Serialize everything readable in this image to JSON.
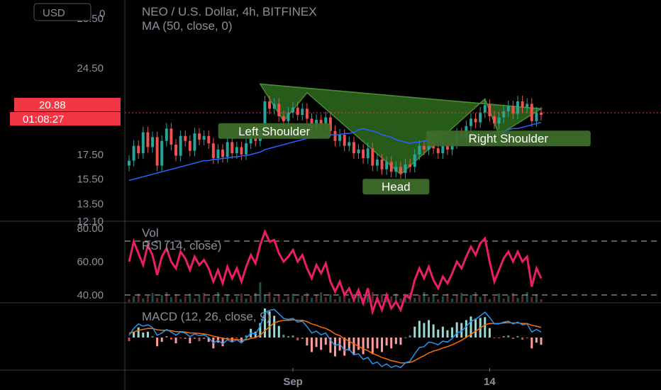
{
  "header": {
    "currency_label": "USD",
    "title": "NEO / U.S. Dollar, 4h, BITFINEX",
    "indicator": "MA (50, close, 0)",
    "top_axis_fragment": "0"
  },
  "price_badge": {
    "price": "20.88",
    "countdown": "01:08:27",
    "color": "#f23645"
  },
  "colors": {
    "background": "#000000",
    "up_candle": "#26a69a",
    "down_candle": "#ef5350",
    "ma_line": "#2962ff",
    "rsi_line": "#e91e63",
    "macd_line": "#2196f3",
    "signal_line": "#ff6d00",
    "pattern_fill": "#2e6b1f",
    "annotation_box": "#3d6b2a"
  },
  "chart_data": [
    {
      "type": "candlestick",
      "title": "NEO / U.S. Dollar, 4h, BITFINEX",
      "y_ticks": [
        "28.50",
        "24.50",
        "17.50",
        "15.50",
        "13.50",
        "12.10"
      ],
      "y_tick_values": [
        28.5,
        24.5,
        17.5,
        15.5,
        13.5,
        12.1
      ],
      "ylim": [
        12.1,
        30.0
      ],
      "x_ticks": [
        "Sep",
        "14"
      ],
      "x_tick_index": [
        35,
        77
      ],
      "current_price": 20.88,
      "annotations": [
        "Left Shoulder",
        "Head",
        "Right Shoulder"
      ],
      "pattern_points": [
        {
          "i": 28,
          "v": 23.2
        },
        {
          "i": 33,
          "v": 20.2
        },
        {
          "i": 38,
          "v": 22.5
        },
        {
          "i": 58,
          "v": 15.9
        },
        {
          "i": 76,
          "v": 22.0
        },
        {
          "i": 79,
          "v": 19.1
        },
        {
          "i": 88,
          "v": 21.2
        }
      ],
      "candles_close": [
        17.0,
        18.2,
        17.6,
        19.3,
        18.1,
        18.9,
        16.6,
        18.6,
        19.6,
        18.3,
        17.4,
        19.0,
        18.6,
        17.8,
        19.2,
        18.7,
        19.0,
        18.4,
        17.2,
        17.9,
        17.3,
        18.5,
        17.6,
        18.1,
        17.5,
        18.4,
        19.1,
        18.6,
        19.5,
        21.8,
        21.2,
        21.6,
        20.6,
        20.2,
        20.9,
        21.3,
        20.7,
        21.2,
        20.4,
        19.6,
        20.3,
        19.9,
        20.5,
        19.4,
        18.6,
        19.1,
        18.2,
        18.5,
        17.6,
        17.9,
        17.2,
        18.0,
        16.6,
        17.1,
        16.3,
        16.9,
        16.1,
        16.5,
        16.0,
        16.7,
        16.5,
        17.5,
        18.2,
        17.9,
        18.6,
        18.0,
        17.6,
        18.2,
        17.9,
        18.4,
        19.2,
        19.0,
        19.8,
        20.4,
        20.1,
        20.9,
        21.5,
        20.6,
        20.0,
        20.5,
        21.0,
        21.4,
        20.8,
        21.8,
        21.3,
        21.6,
        20.2,
        20.9,
        20.7
      ],
      "ma_values": [
        15.4,
        15.5,
        15.6,
        15.7,
        15.8,
        15.9,
        16.0,
        16.1,
        16.2,
        16.3,
        16.4,
        16.5,
        16.6,
        16.7,
        16.8,
        16.9,
        17.0,
        17.0,
        17.1,
        17.1,
        17.2,
        17.2,
        17.3,
        17.3,
        17.4,
        17.4,
        17.5,
        17.6,
        17.7,
        17.9,
        18.0,
        18.1,
        18.2,
        18.3,
        18.4,
        18.5,
        18.6,
        18.7,
        18.8,
        18.9,
        18.9,
        19.0,
        19.0,
        19.1,
        19.1,
        19.1,
        19.2,
        19.2,
        19.3,
        19.5,
        19.6,
        19.5,
        19.4,
        19.3,
        19.1,
        19.0,
        18.9,
        18.7,
        18.6,
        18.5,
        18.4,
        18.5,
        18.5,
        18.6,
        18.6,
        18.6,
        18.7,
        18.7,
        18.8,
        18.8,
        18.8,
        18.9,
        18.9,
        19.0,
        19.1,
        19.1,
        19.2,
        19.2,
        19.3,
        19.3,
        19.4,
        19.5,
        19.6,
        19.6,
        19.7,
        19.8,
        19.9,
        20.0,
        20.1
      ]
    },
    {
      "type": "line",
      "title": "RSI (14, close)",
      "volume_label": "Vol",
      "y_ticks": [
        "80.00",
        "60.00",
        "40.00"
      ],
      "y_tick_values": [
        80,
        60,
        40
      ],
      "bands": [
        70,
        30
      ],
      "ylim": [
        20,
        80
      ],
      "values": [
        60,
        72,
        65,
        58,
        70,
        64,
        52,
        63,
        68,
        60,
        56,
        66,
        62,
        55,
        63,
        58,
        61,
        56,
        48,
        55,
        47,
        57,
        50,
        56,
        48,
        57,
        64,
        59,
        70,
        78,
        72,
        73,
        65,
        60,
        63,
        67,
        60,
        64,
        56,
        50,
        58,
        53,
        59,
        48,
        42,
        48,
        40,
        44,
        37,
        43,
        35,
        44,
        30,
        38,
        31,
        40,
        32,
        36,
        31,
        40,
        38,
        49,
        56,
        50,
        57,
        49,
        44,
        51,
        47,
        53,
        60,
        56,
        63,
        69,
        64,
        71,
        74,
        60,
        48,
        55,
        62,
        66,
        60,
        66,
        60,
        63,
        45,
        56,
        50
      ]
    },
    {
      "type": "line",
      "title": "MACD (12, 26, close, 9)",
      "macd": [
        0.05,
        0.2,
        0.3,
        0.25,
        0.28,
        0.22,
        0.05,
        0.1,
        0.18,
        0.12,
        0.05,
        0.12,
        0.1,
        0.02,
        0.08,
        0.04,
        0.06,
        0.0,
        -0.12,
        -0.06,
        -0.14,
        -0.05,
        -0.1,
        -0.05,
        -0.12,
        -0.02,
        0.1,
        0.08,
        0.25,
        0.55,
        0.6,
        0.62,
        0.52,
        0.42,
        0.4,
        0.42,
        0.34,
        0.36,
        0.24,
        0.1,
        0.14,
        0.06,
        0.1,
        -0.06,
        -0.18,
        -0.14,
        -0.28,
        -0.26,
        -0.38,
        -0.36,
        -0.48,
        -0.44,
        -0.58,
        -0.54,
        -0.64,
        -0.58,
        -0.66,
        -0.62,
        -0.66,
        -0.56,
        -0.52,
        -0.36,
        -0.22,
        -0.2,
        -0.1,
        -0.12,
        -0.16,
        -0.08,
        -0.1,
        -0.02,
        0.1,
        0.14,
        0.24,
        0.36,
        0.4,
        0.48,
        0.56,
        0.44,
        0.3,
        0.3,
        0.34,
        0.36,
        0.3,
        0.34,
        0.28,
        0.3,
        0.12,
        0.18,
        0.12
      ],
      "signal": [
        0.1,
        0.12,
        0.16,
        0.18,
        0.2,
        0.2,
        0.17,
        0.16,
        0.16,
        0.15,
        0.13,
        0.13,
        0.12,
        0.1,
        0.1,
        0.09,
        0.08,
        0.06,
        0.03,
        0.01,
        -0.02,
        -0.03,
        -0.04,
        -0.04,
        -0.06,
        -0.05,
        -0.02,
        0.0,
        0.05,
        0.15,
        0.24,
        0.32,
        0.36,
        0.38,
        0.38,
        0.39,
        0.38,
        0.38,
        0.35,
        0.3,
        0.27,
        0.23,
        0.2,
        0.15,
        0.08,
        0.04,
        -0.03,
        -0.08,
        -0.14,
        -0.19,
        -0.25,
        -0.29,
        -0.35,
        -0.39,
        -0.44,
        -0.47,
        -0.51,
        -0.53,
        -0.56,
        -0.56,
        -0.55,
        -0.51,
        -0.45,
        -0.4,
        -0.34,
        -0.3,
        -0.27,
        -0.23,
        -0.2,
        -0.16,
        -0.11,
        -0.06,
        0.0,
        0.07,
        0.14,
        0.21,
        0.28,
        0.31,
        0.31,
        0.31,
        0.32,
        0.33,
        0.32,
        0.32,
        0.31,
        0.31,
        0.27,
        0.25,
        0.22
      ],
      "ylim": [
        -0.75,
        0.75
      ]
    }
  ]
}
